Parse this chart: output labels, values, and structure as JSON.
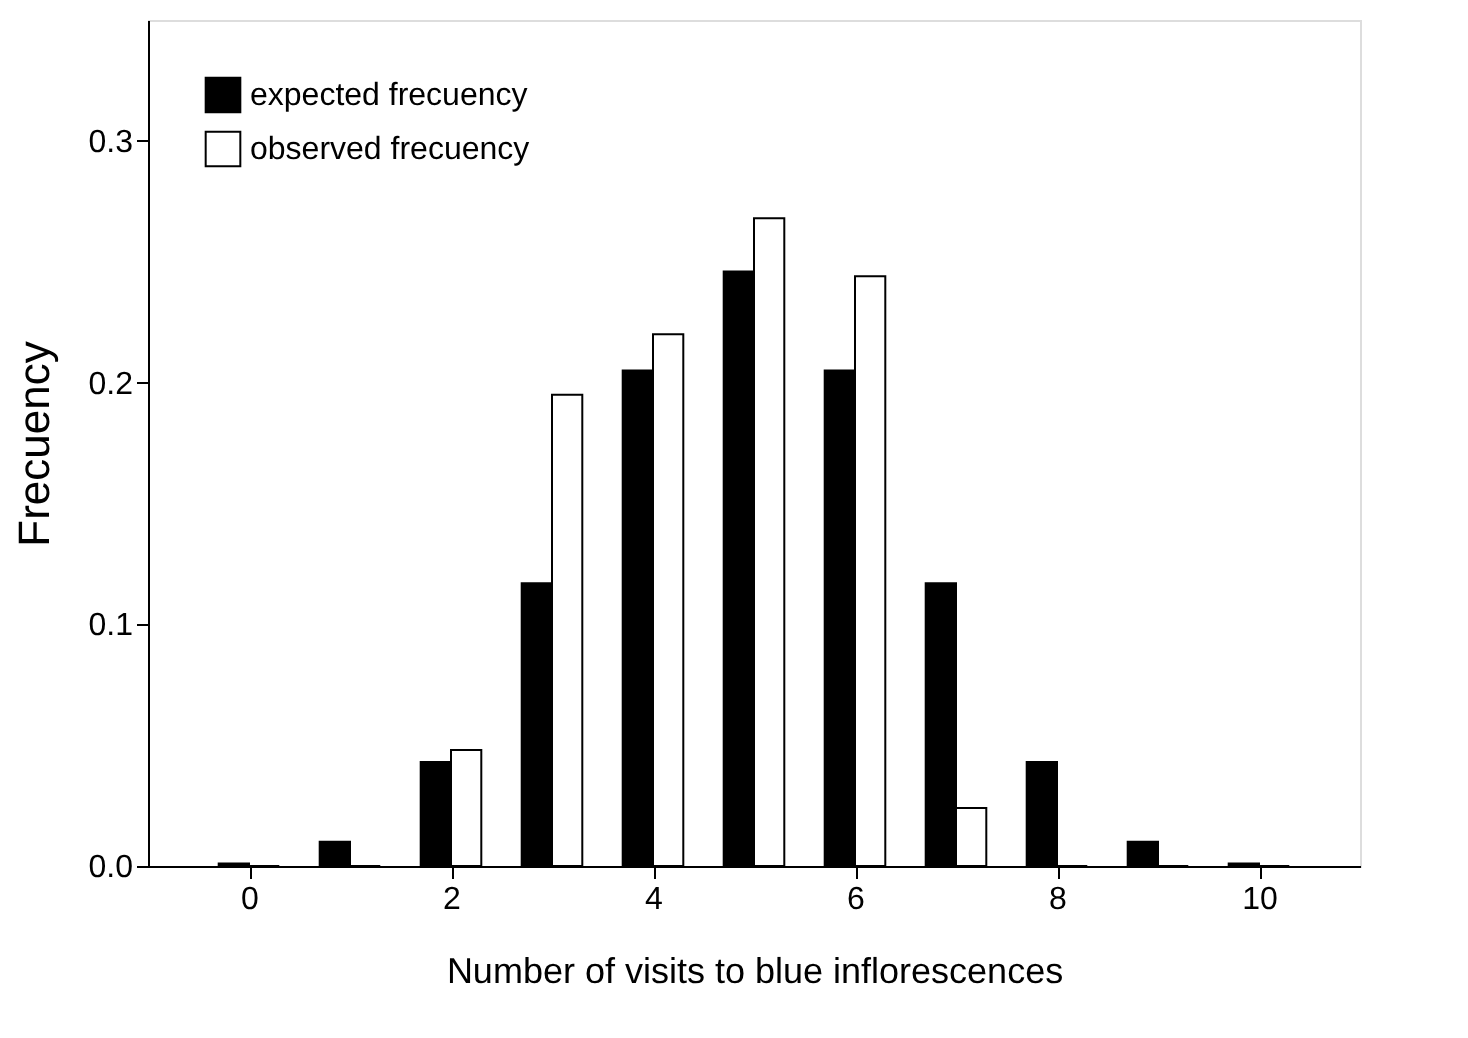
{
  "chart_data": {
    "type": "bar",
    "xlabel": "Number of visits to blue inflorescences",
    "ylabel": "Frecuency",
    "x": [
      0,
      1,
      2,
      3,
      4,
      5,
      6,
      7,
      8,
      9,
      10
    ],
    "series": [
      {
        "name": "expected frecuency",
        "color": "#000000",
        "values": [
          0.001,
          0.01,
          0.043,
          0.117,
          0.205,
          0.246,
          0.205,
          0.117,
          0.043,
          0.01,
          0.001
        ]
      },
      {
        "name": "observed frecuency",
        "color": "#ffffff",
        "values": [
          0,
          0,
          0.048,
          0.195,
          0.22,
          0.268,
          0.244,
          0.024,
          0,
          0,
          0
        ]
      }
    ],
    "xlim": [
      -1,
      11
    ],
    "xticks": [
      0,
      2,
      4,
      6,
      8,
      10
    ],
    "ylim": [
      0,
      0.35
    ],
    "yticks": [
      {
        "value": 0,
        "label": "0.0"
      },
      {
        "value": 0.1,
        "label": "0.1"
      },
      {
        "value": 0.2,
        "label": "0.2"
      },
      {
        "value": 0.3,
        "label": "0.3"
      }
    ],
    "grid": false,
    "legend": "top left"
  }
}
